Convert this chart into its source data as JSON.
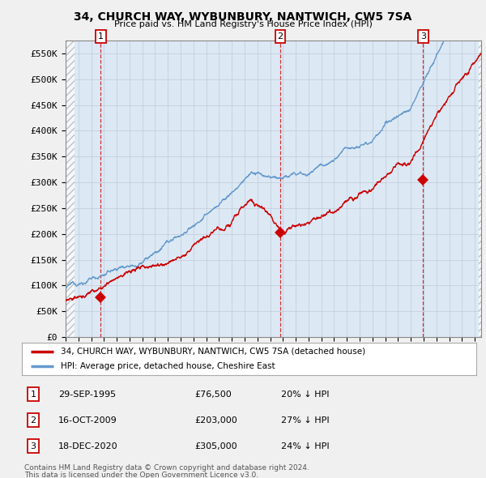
{
  "title_line1": "34, CHURCH WAY, WYBUNBURY, NANTWICH, CW5 7SA",
  "title_line2": "Price paid vs. HM Land Registry's House Price Index (HPI)",
  "ylim": [
    0,
    575000
  ],
  "yticks": [
    0,
    50000,
    100000,
    150000,
    200000,
    250000,
    300000,
    350000,
    400000,
    450000,
    500000,
    550000
  ],
  "ytick_labels": [
    "£0",
    "£50K",
    "£100K",
    "£150K",
    "£200K",
    "£250K",
    "£300K",
    "£350K",
    "£400K",
    "£450K",
    "£500K",
    "£550K"
  ],
  "xlim_start": 1993.0,
  "xlim_end": 2025.5,
  "sale_color": "#cc0000",
  "hpi_color": "#6699cc",
  "plot_bg": "#dce9f5",
  "sale_label": "34, CHURCH WAY, WYBUNBURY, NANTWICH, CW5 7SA (detached house)",
  "hpi_label": "HPI: Average price, detached house, Cheshire East",
  "transactions": [
    {
      "num": 1,
      "date_x": 1995.75,
      "price": 76500,
      "label": "29-SEP-1995",
      "price_str": "£76,500",
      "pct": "20% ↓ HPI"
    },
    {
      "num": 2,
      "date_x": 2009.79,
      "price": 203000,
      "label": "16-OCT-2009",
      "price_str": "£203,000",
      "pct": "27% ↓ HPI"
    },
    {
      "num": 3,
      "date_x": 2020.96,
      "price": 305000,
      "label": "18-DEC-2020",
      "price_str": "£305,000",
      "pct": "24% ↓ HPI"
    }
  ],
  "footnote_line1": "Contains HM Land Registry data © Crown copyright and database right 2024.",
  "footnote_line2": "This data is licensed under the Open Government Licence v3.0.",
  "background_color": "#f0f0f0",
  "grid_color": "#c0c8d8"
}
